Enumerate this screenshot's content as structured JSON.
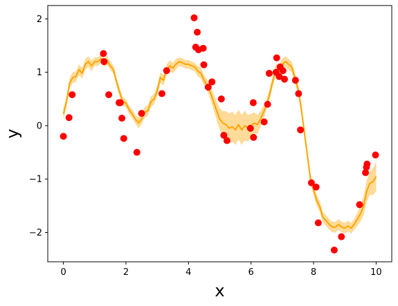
{
  "chart_data": {
    "type": "scatter",
    "xlabel": "x",
    "ylabel": "y",
    "xlim": [
      -0.5,
      10.5
    ],
    "ylim": [
      -2.55,
      2.25
    ],
    "xticks": [
      0,
      2,
      4,
      6,
      8,
      10
    ],
    "yticks": [
      -2,
      -1,
      0,
      1,
      2
    ],
    "xtick_labels": [
      "0",
      "2",
      "4",
      "6",
      "8",
      "10"
    ],
    "ytick_labels": [
      "−2",
      "−1",
      "0",
      "1",
      "2"
    ],
    "grid": false,
    "legend": "none",
    "colors": {
      "points": "#ff0000",
      "mean": "#ffa500",
      "band": "#ffa500"
    },
    "points": {
      "x": [
        0.0,
        0.18,
        0.28,
        1.28,
        1.3,
        1.45,
        1.78,
        1.82,
        1.87,
        1.93,
        2.35,
        2.5,
        3.15,
        3.3,
        4.18,
        4.23,
        4.28,
        4.32,
        4.47,
        4.49,
        4.63,
        4.75,
        5.05,
        5.13,
        5.23,
        5.98,
        6.07,
        6.08,
        6.42,
        6.53,
        6.58,
        6.8,
        6.82,
        6.9,
        6.93,
        7.02,
        7.07,
        7.42,
        7.52,
        7.58,
        7.93,
        8.08,
        8.15,
        8.66,
        8.89,
        9.47,
        9.66,
        9.69,
        9.71,
        9.98
      ],
      "y": [
        -0.2,
        0.15,
        0.58,
        1.35,
        1.2,
        0.58,
        0.43,
        0.43,
        0.14,
        -0.24,
        -0.5,
        0.23,
        0.6,
        1.03,
        2.02,
        1.47,
        1.75,
        1.42,
        1.45,
        1.14,
        0.72,
        0.82,
        0.5,
        -0.18,
        -0.28,
        -0.05,
        0.43,
        -0.22,
        0.07,
        0.4,
        0.98,
        1.0,
        1.27,
        0.92,
        1.1,
        1.03,
        0.87,
        0.85,
        0.6,
        -0.08,
        -1.07,
        -1.15,
        -1.82,
        -2.33,
        -2.08,
        -1.48,
        -0.88,
        -0.78,
        -0.72,
        -0.55
      ]
    },
    "mean_line": {
      "x": [
        0.0,
        0.1,
        0.2,
        0.3,
        0.4,
        0.5,
        0.6,
        0.7,
        0.8,
        0.9,
        1.0,
        1.1,
        1.2,
        1.3,
        1.4,
        1.5,
        1.6,
        1.7,
        1.8,
        1.9,
        2.0,
        2.1,
        2.2,
        2.3,
        2.4,
        2.5,
        2.6,
        2.7,
        2.8,
        2.9,
        3.0,
        3.1,
        3.2,
        3.3,
        3.4,
        3.5,
        3.6,
        3.7,
        3.8,
        3.9,
        4.0,
        4.1,
        4.2,
        4.3,
        4.4,
        4.5,
        4.6,
        4.7,
        4.8,
        4.9,
        5.0,
        5.1,
        5.2,
        5.3,
        5.4,
        5.5,
        5.6,
        5.7,
        5.8,
        5.9,
        6.0,
        6.1,
        6.2,
        6.3,
        6.4,
        6.5,
        6.6,
        6.7,
        6.8,
        6.9,
        7.0,
        7.1,
        7.2,
        7.3,
        7.4,
        7.5,
        7.6,
        7.7,
        7.8,
        7.9,
        8.0,
        8.1,
        8.2,
        8.3,
        8.4,
        8.5,
        8.6,
        8.7,
        8.8,
        8.9,
        9.0,
        9.1,
        9.2,
        9.3,
        9.4,
        9.5,
        9.6,
        9.7,
        9.8,
        9.9,
        10.0
      ],
      "y": [
        0.22,
        0.45,
        0.8,
        0.9,
        0.92,
        1.05,
        0.98,
        1.15,
        1.2,
        1.12,
        1.2,
        1.2,
        1.25,
        1.18,
        1.22,
        1.12,
        1.05,
        0.82,
        0.62,
        0.45,
        0.42,
        0.3,
        0.22,
        0.12,
        0.05,
        0.12,
        0.25,
        0.28,
        0.45,
        0.5,
        0.65,
        0.9,
        0.85,
        1.05,
        1.12,
        1.08,
        1.15,
        1.2,
        1.18,
        1.15,
        1.15,
        1.12,
        1.1,
        1.02,
        0.98,
        0.85,
        0.75,
        0.62,
        0.45,
        0.28,
        0.12,
        0.05,
        0.02,
        -0.05,
        -0.02,
        -0.08,
        0.02,
        -0.08,
        0.0,
        -0.05,
        0.0,
        0.05,
        0.02,
        0.12,
        0.25,
        0.4,
        0.6,
        0.85,
        1.05,
        1.05,
        1.15,
        1.2,
        1.15,
        1.1,
        0.9,
        0.7,
        0.35,
        -0.1,
        -0.55,
        -1.0,
        -1.2,
        -1.4,
        -1.52,
        -1.72,
        -1.78,
        -1.85,
        -1.9,
        -1.9,
        -1.85,
        -1.9,
        -1.92,
        -1.88,
        -1.92,
        -1.85,
        -1.75,
        -1.65,
        -1.5,
        -1.22,
        -1.08,
        -1.05,
        -0.95
      ],
      "halfwidth": [
        0.1,
        0.1,
        0.1,
        0.1,
        0.1,
        0.1,
        0.1,
        0.1,
        0.1,
        0.1,
        0.08,
        0.08,
        0.08,
        0.08,
        0.08,
        0.08,
        0.08,
        0.08,
        0.08,
        0.08,
        0.08,
        0.08,
        0.08,
        0.08,
        0.1,
        0.1,
        0.1,
        0.1,
        0.1,
        0.1,
        0.1,
        0.1,
        0.1,
        0.1,
        0.1,
        0.1,
        0.1,
        0.08,
        0.08,
        0.08,
        0.08,
        0.08,
        0.08,
        0.1,
        0.1,
        0.1,
        0.1,
        0.12,
        0.15,
        0.18,
        0.2,
        0.22,
        0.25,
        0.28,
        0.28,
        0.28,
        0.28,
        0.28,
        0.28,
        0.25,
        0.22,
        0.2,
        0.18,
        0.15,
        0.12,
        0.1,
        0.1,
        0.1,
        0.1,
        0.1,
        0.1,
        0.1,
        0.1,
        0.1,
        0.1,
        0.1,
        0.1,
        0.1,
        0.1,
        0.1,
        0.1,
        0.1,
        0.1,
        0.1,
        0.1,
        0.1,
        0.1,
        0.1,
        0.1,
        0.1,
        0.1,
        0.1,
        0.1,
        0.1,
        0.12,
        0.15,
        0.18,
        0.2,
        0.22,
        0.25,
        0.28
      ]
    }
  }
}
